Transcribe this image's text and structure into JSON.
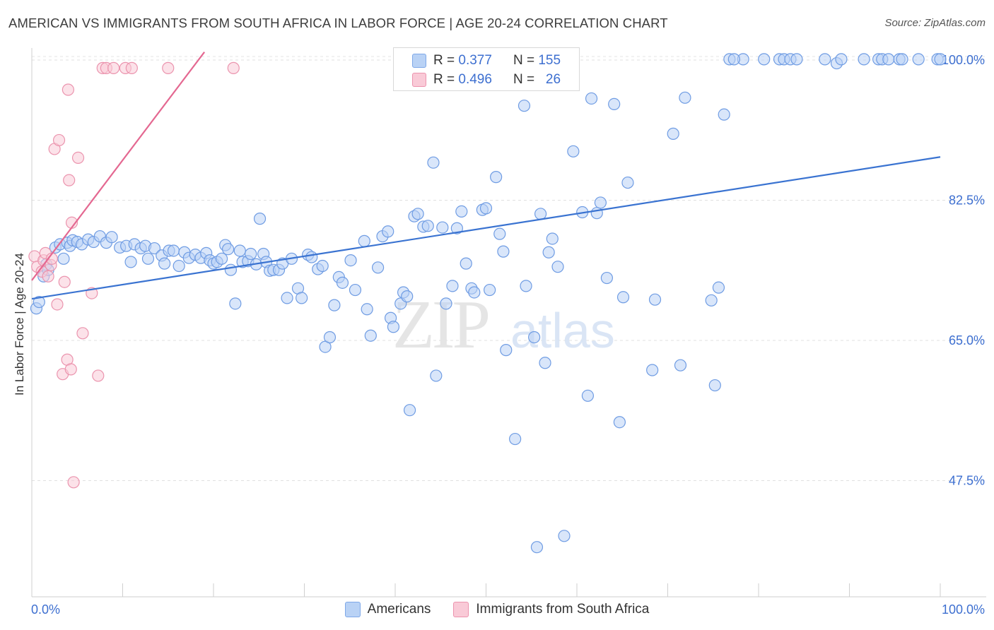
{
  "title": "AMERICAN VS IMMIGRANTS FROM SOUTH AFRICA IN LABOR FORCE | AGE 20-24 CORRELATION CHART",
  "source": "Source: ZipAtlas.com",
  "watermark": {
    "zip": "ZIP",
    "atlas": "atlas"
  },
  "stats_legend": {
    "americans": {
      "r_label": "R =",
      "r_value": "0.377",
      "n_label": "N =",
      "n_value": "155"
    },
    "immigrants": {
      "r_label": "R =",
      "r_value": "0.496",
      "n_label": "N =",
      "n_value": "26"
    }
  },
  "legend": {
    "americans": "Americans",
    "immigrants": "Immigrants from South Africa"
  },
  "colors": {
    "blue": "#3a73d1",
    "blue_fill": "#b9d2f5",
    "pink": "#e46891",
    "pink_fill": "#f9cad7"
  },
  "chart_data": {
    "type": "scatter",
    "title": "AMERICAN VS IMMIGRANTS FROM SOUTH AFRICA IN LABOR FORCE | AGE 20-24 CORRELATION CHART",
    "xlabel": "",
    "ylabel": "In Labor Force | Age 20-24",
    "xlim": [
      0,
      100
    ],
    "ylim": [
      33,
      101.5
    ],
    "x_tick_labels": [
      "0.0%",
      "100.0%"
    ],
    "y_ticks": [
      47.5,
      65.0,
      82.5,
      100.0
    ],
    "y_tick_labels": [
      "47.5%",
      "65.0%",
      "82.5%",
      "100.0%"
    ],
    "series": [
      {
        "name": "Americans",
        "color": "#3a73d1",
        "trend": {
          "x": [
            0,
            100
          ],
          "y": [
            70.2,
            87.9
          ]
        },
        "points": [
          [
            0.5,
            69.0
          ],
          [
            0.8,
            69.8
          ],
          [
            1.3,
            73.0
          ],
          [
            1.6,
            74.5
          ],
          [
            1.8,
            73.8
          ],
          [
            2.6,
            76.6
          ],
          [
            3.1,
            77.0
          ],
          [
            3.5,
            75.2
          ],
          [
            3.9,
            77.2
          ],
          [
            4.2,
            76.8
          ],
          [
            4.5,
            77.5
          ],
          [
            5.0,
            77.3
          ],
          [
            5.5,
            77.0
          ],
          [
            6.2,
            77.6
          ],
          [
            6.8,
            77.3
          ],
          [
            7.5,
            78.0
          ],
          [
            8.2,
            77.2
          ],
          [
            8.8,
            77.9
          ],
          [
            9.7,
            76.6
          ],
          [
            10.4,
            76.8
          ],
          [
            10.9,
            74.8
          ],
          [
            11.3,
            77.0
          ],
          [
            12.0,
            76.5
          ],
          [
            12.5,
            76.8
          ],
          [
            12.8,
            75.2
          ],
          [
            13.5,
            76.5
          ],
          [
            14.3,
            75.6
          ],
          [
            14.6,
            74.6
          ],
          [
            15.1,
            76.2
          ],
          [
            15.6,
            76.2
          ],
          [
            16.2,
            74.3
          ],
          [
            16.8,
            76.0
          ],
          [
            17.3,
            75.3
          ],
          [
            18.0,
            75.7
          ],
          [
            18.6,
            75.3
          ],
          [
            19.2,
            75.9
          ],
          [
            19.6,
            75.0
          ],
          [
            20.0,
            74.6
          ],
          [
            20.4,
            74.8
          ],
          [
            20.9,
            75.2
          ],
          [
            21.3,
            76.9
          ],
          [
            21.6,
            76.4
          ],
          [
            21.9,
            73.8
          ],
          [
            22.4,
            69.6
          ],
          [
            22.9,
            76.2
          ],
          [
            23.2,
            74.8
          ],
          [
            23.8,
            74.9
          ],
          [
            24.1,
            75.8
          ],
          [
            24.7,
            74.5
          ],
          [
            25.1,
            80.2
          ],
          [
            25.5,
            75.8
          ],
          [
            25.8,
            74.8
          ],
          [
            26.2,
            73.7
          ],
          [
            26.6,
            73.8
          ],
          [
            27.2,
            73.8
          ],
          [
            27.6,
            74.6
          ],
          [
            28.1,
            70.3
          ],
          [
            28.6,
            75.2
          ],
          [
            29.3,
            71.5
          ],
          [
            29.7,
            70.3
          ],
          [
            30.4,
            75.7
          ],
          [
            30.8,
            75.4
          ],
          [
            31.5,
            73.9
          ],
          [
            32.0,
            74.3
          ],
          [
            32.3,
            64.2
          ],
          [
            32.8,
            65.4
          ],
          [
            33.3,
            69.4
          ],
          [
            33.8,
            72.9
          ],
          [
            34.2,
            72.2
          ],
          [
            35.1,
            75.0
          ],
          [
            35.6,
            71.3
          ],
          [
            36.6,
            77.4
          ],
          [
            36.9,
            68.9
          ],
          [
            37.3,
            65.6
          ],
          [
            38.1,
            74.1
          ],
          [
            38.6,
            78.0
          ],
          [
            39.2,
            78.6
          ],
          [
            39.5,
            67.8
          ],
          [
            39.8,
            66.7
          ],
          [
            40.6,
            69.6
          ],
          [
            40.9,
            71.0
          ],
          [
            41.3,
            70.5
          ],
          [
            41.6,
            56.3
          ],
          [
            42.1,
            80.5
          ],
          [
            42.5,
            80.8
          ],
          [
            43.1,
            79.2
          ],
          [
            43.6,
            79.3
          ],
          [
            44.2,
            87.2
          ],
          [
            44.5,
            60.6
          ],
          [
            45.2,
            79.1
          ],
          [
            45.6,
            69.6
          ],
          [
            46.3,
            71.8
          ],
          [
            46.8,
            79.0
          ],
          [
            47.3,
            81.1
          ],
          [
            47.8,
            74.6
          ],
          [
            48.4,
            71.5
          ],
          [
            48.7,
            71.0
          ],
          [
            49.6,
            81.3
          ],
          [
            50.0,
            81.5
          ],
          [
            50.4,
            71.3
          ],
          [
            51.1,
            85.4
          ],
          [
            51.5,
            78.3
          ],
          [
            51.9,
            76.1
          ],
          [
            52.2,
            63.8
          ],
          [
            53.2,
            52.7
          ],
          [
            54.2,
            94.3
          ],
          [
            54.4,
            71.8
          ],
          [
            55.3,
            65.4
          ],
          [
            55.6,
            39.2
          ],
          [
            56.0,
            80.8
          ],
          [
            56.5,
            62.2
          ],
          [
            56.9,
            76.0
          ],
          [
            57.3,
            77.7
          ],
          [
            57.9,
            74.2
          ],
          [
            58.6,
            40.6
          ],
          [
            58.9,
            98.4
          ],
          [
            59.6,
            88.6
          ],
          [
            60.6,
            81.0
          ],
          [
            61.2,
            58.1
          ],
          [
            61.6,
            95.2
          ],
          [
            62.2,
            80.9
          ],
          [
            62.6,
            82.2
          ],
          [
            63.3,
            72.8
          ],
          [
            64.1,
            94.5
          ],
          [
            64.7,
            54.8
          ],
          [
            65.1,
            70.4
          ],
          [
            65.6,
            84.7
          ],
          [
            68.3,
            61.3
          ],
          [
            68.6,
            70.1
          ],
          [
            70.6,
            90.8
          ],
          [
            71.4,
            61.9
          ],
          [
            71.9,
            95.3
          ],
          [
            75.2,
            59.4
          ],
          [
            75.6,
            71.6
          ],
          [
            76.2,
            93.2
          ],
          [
            74.8,
            70.0
          ],
          [
            78.3,
            100.1
          ],
          [
            80.6,
            100.1
          ],
          [
            82.3,
            100.1
          ],
          [
            82.8,
            100.1
          ],
          [
            83.5,
            100.1
          ],
          [
            84.2,
            100.1
          ],
          [
            87.3,
            100.1
          ],
          [
            88.6,
            99.6
          ],
          [
            89.1,
            100.1
          ],
          [
            91.6,
            100.1
          ],
          [
            93.2,
            100.1
          ],
          [
            93.6,
            100.1
          ],
          [
            94.3,
            100.1
          ],
          [
            95.5,
            100.1
          ],
          [
            95.8,
            100.1
          ],
          [
            97.6,
            100.1
          ],
          [
            99.7,
            100.1
          ],
          [
            100.0,
            100.1
          ],
          [
            76.8,
            100.1
          ],
          [
            77.3,
            100.1
          ],
          [
            53.6,
            100.1
          ],
          [
            54.0,
            100.1
          ]
        ]
      },
      {
        "name": "Immigrants from South Africa",
        "color": "#e46891",
        "trend": {
          "x": [
            0,
            19
          ],
          "y": [
            72.5,
            101.0
          ]
        },
        "points": [
          [
            0.3,
            75.5
          ],
          [
            0.6,
            74.2
          ],
          [
            1.1,
            73.6
          ],
          [
            1.3,
            75.0
          ],
          [
            1.5,
            75.9
          ],
          [
            1.8,
            73.0
          ],
          [
            2.1,
            74.4
          ],
          [
            2.2,
            75.2
          ],
          [
            2.5,
            88.9
          ],
          [
            2.8,
            69.5
          ],
          [
            3.0,
            90.0
          ],
          [
            3.6,
            72.3
          ],
          [
            3.9,
            62.6
          ],
          [
            3.4,
            60.8
          ],
          [
            4.0,
            96.3
          ],
          [
            4.1,
            85.0
          ],
          [
            4.3,
            61.4
          ],
          [
            4.4,
            79.7
          ],
          [
            4.6,
            47.3
          ],
          [
            5.1,
            87.8
          ],
          [
            5.6,
            65.9
          ],
          [
            6.6,
            70.9
          ],
          [
            7.3,
            60.6
          ],
          [
            7.8,
            99.0
          ],
          [
            8.2,
            99.0
          ],
          [
            9.0,
            99.0
          ],
          [
            10.3,
            99.0
          ],
          [
            11.0,
            99.0
          ],
          [
            15.0,
            99.0
          ],
          [
            22.2,
            99.0
          ]
        ]
      }
    ]
  }
}
